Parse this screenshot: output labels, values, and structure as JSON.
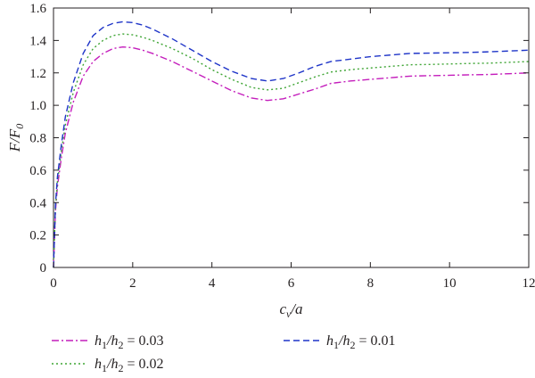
{
  "chart_data": {
    "type": "line",
    "xlabel": {
      "base": "c",
      "sub": "v",
      "rest": "/a"
    },
    "ylabel": {
      "base": "F/F",
      "sub": "0"
    },
    "xlim": [
      0,
      12
    ],
    "ylim": [
      0,
      1.6
    ],
    "xticks": [
      0,
      2,
      4,
      6,
      8,
      10,
      12
    ],
    "xtick_labels": [
      "0",
      "2",
      "4",
      "6",
      "8",
      "10",
      "12"
    ],
    "yticks": [
      0,
      0.2,
      0.4,
      0.6,
      0.8,
      1.0,
      1.2,
      1.4,
      1.6
    ],
    "ytick_labels": [
      "0",
      "0.2",
      "0.4",
      "0.6",
      "0.8",
      "1.0",
      "1.2",
      "1.4",
      "1.6"
    ],
    "grid": false,
    "legend_position": "bottom",
    "series": [
      {
        "name": "h1/h2 = 0.03",
        "legend": {
          "a": "h",
          "a_sub": "1",
          "b": "h",
          "b_sub": "2",
          "value": " = 0.03"
        },
        "color": "#c41ebc",
        "dash": "dashdot",
        "x": [
          0,
          0.05,
          0.1,
          0.2,
          0.3,
          0.5,
          0.75,
          1.0,
          1.25,
          1.5,
          1.75,
          2.0,
          2.25,
          2.5,
          3.0,
          3.5,
          4.0,
          4.5,
          5.0,
          5.4,
          5.8,
          6.2,
          6.6,
          7.0,
          7.5,
          8.0,
          8.5,
          9.0,
          9.5,
          10.0,
          10.5,
          11.0,
          11.5,
          12.0
        ],
        "y": [
          0,
          0.35,
          0.5,
          0.68,
          0.83,
          1.02,
          1.18,
          1.27,
          1.32,
          1.35,
          1.36,
          1.355,
          1.34,
          1.32,
          1.27,
          1.21,
          1.15,
          1.09,
          1.045,
          1.03,
          1.04,
          1.07,
          1.1,
          1.135,
          1.15,
          1.16,
          1.17,
          1.18,
          1.183,
          1.185,
          1.188,
          1.19,
          1.195,
          1.2
        ]
      },
      {
        "name": "h1/h2 = 0.02",
        "legend": {
          "a": "h",
          "a_sub": "1",
          "b": "h",
          "b_sub": "2",
          "value": " = 0.02"
        },
        "color": "#3fa535",
        "dash": "dotted",
        "x": [
          0,
          0.05,
          0.1,
          0.2,
          0.3,
          0.5,
          0.75,
          1.0,
          1.25,
          1.5,
          1.75,
          2.0,
          2.25,
          2.5,
          3.0,
          3.5,
          4.0,
          4.5,
          5.0,
          5.4,
          5.8,
          6.2,
          6.6,
          7.0,
          7.5,
          8.0,
          8.5,
          9.0,
          9.5,
          10.0,
          10.5,
          11.0,
          11.5,
          12.0
        ],
        "y": [
          0,
          0.37,
          0.53,
          0.72,
          0.88,
          1.08,
          1.25,
          1.35,
          1.4,
          1.43,
          1.44,
          1.435,
          1.42,
          1.4,
          1.35,
          1.29,
          1.22,
          1.16,
          1.11,
          1.095,
          1.105,
          1.14,
          1.175,
          1.205,
          1.22,
          1.23,
          1.24,
          1.25,
          1.252,
          1.255,
          1.258,
          1.26,
          1.265,
          1.27
        ]
      },
      {
        "name": "h1/h2 = 0.01",
        "legend": {
          "a": "h",
          "a_sub": "1",
          "b": "h",
          "b_sub": "2",
          "value": " = 0.01"
        },
        "color": "#1f35c8",
        "dash": "dashed",
        "x": [
          0,
          0.05,
          0.1,
          0.2,
          0.3,
          0.5,
          0.75,
          1.0,
          1.25,
          1.5,
          1.75,
          2.0,
          2.25,
          2.5,
          3.0,
          3.5,
          4.0,
          4.5,
          5.0,
          5.4,
          5.8,
          6.2,
          6.6,
          7.0,
          7.5,
          8.0,
          8.5,
          9.0,
          9.5,
          10.0,
          10.5,
          11.0,
          11.5,
          12.0
        ],
        "y": [
          0,
          0.39,
          0.56,
          0.76,
          0.93,
          1.14,
          1.32,
          1.43,
          1.48,
          1.505,
          1.515,
          1.51,
          1.495,
          1.47,
          1.41,
          1.34,
          1.27,
          1.21,
          1.165,
          1.15,
          1.165,
          1.2,
          1.24,
          1.27,
          1.285,
          1.3,
          1.31,
          1.32,
          1.322,
          1.324,
          1.326,
          1.33,
          1.335,
          1.34
        ]
      }
    ]
  }
}
